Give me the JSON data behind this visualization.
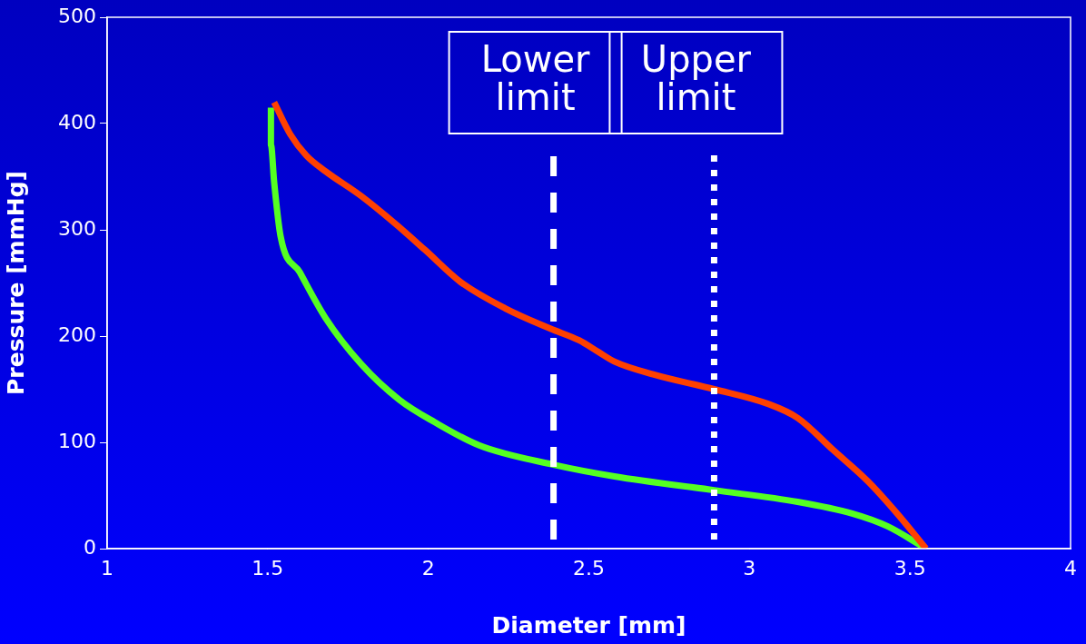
{
  "chart_data": {
    "type": "line",
    "xlabel": "Diameter [mm]",
    "ylabel": "Pressure [mmHg]",
    "xlim": [
      1,
      4
    ],
    "xticks": [
      1,
      1.5,
      2,
      2.5,
      3,
      3.5,
      4
    ],
    "ylim": [
      0,
      500
    ],
    "yticks": [
      0,
      100,
      200,
      300,
      400,
      500
    ],
    "grid": false,
    "legend": false,
    "marker": "none",
    "series": [
      {
        "color": "#ff4000",
        "x": [
          1.52,
          1.57,
          1.62,
          1.68,
          1.79,
          1.9,
          1.99,
          2.1,
          2.24,
          2.38,
          2.47,
          2.53,
          2.58,
          2.7,
          2.89,
          3.06,
          3.15,
          3.26,
          3.37,
          3.46,
          3.55
        ],
        "values": [
          420,
          390,
          370,
          355,
          332,
          305,
          281,
          251,
          226,
          207,
          196,
          185,
          176,
          164,
          150,
          136,
          123,
          93,
          63,
          33,
          0
        ]
      },
      {
        "color": "#55ff22",
        "x": [
          1.51,
          1.51,
          1.52,
          1.54,
          1.6,
          1.68,
          1.79,
          1.91,
          2.02,
          2.16,
          2.39,
          2.58,
          2.89,
          3.15,
          3.32,
          3.43,
          3.55
        ],
        "values": [
          415,
          380,
          345,
          294,
          260,
          217,
          174,
          140,
          119,
          97,
          79,
          68,
          55,
          44,
          33,
          21,
          0
        ]
      }
    ],
    "ref_lines": [
      {
        "axis": "x",
        "value": 2.39,
        "label": "Lower limit",
        "line_style": "dashed",
        "color": "#ffffff"
      },
      {
        "axis": "x",
        "value": 2.89,
        "label": "Upper limit",
        "line_style": "dotted",
        "color": "#ffffff"
      }
    ]
  }
}
